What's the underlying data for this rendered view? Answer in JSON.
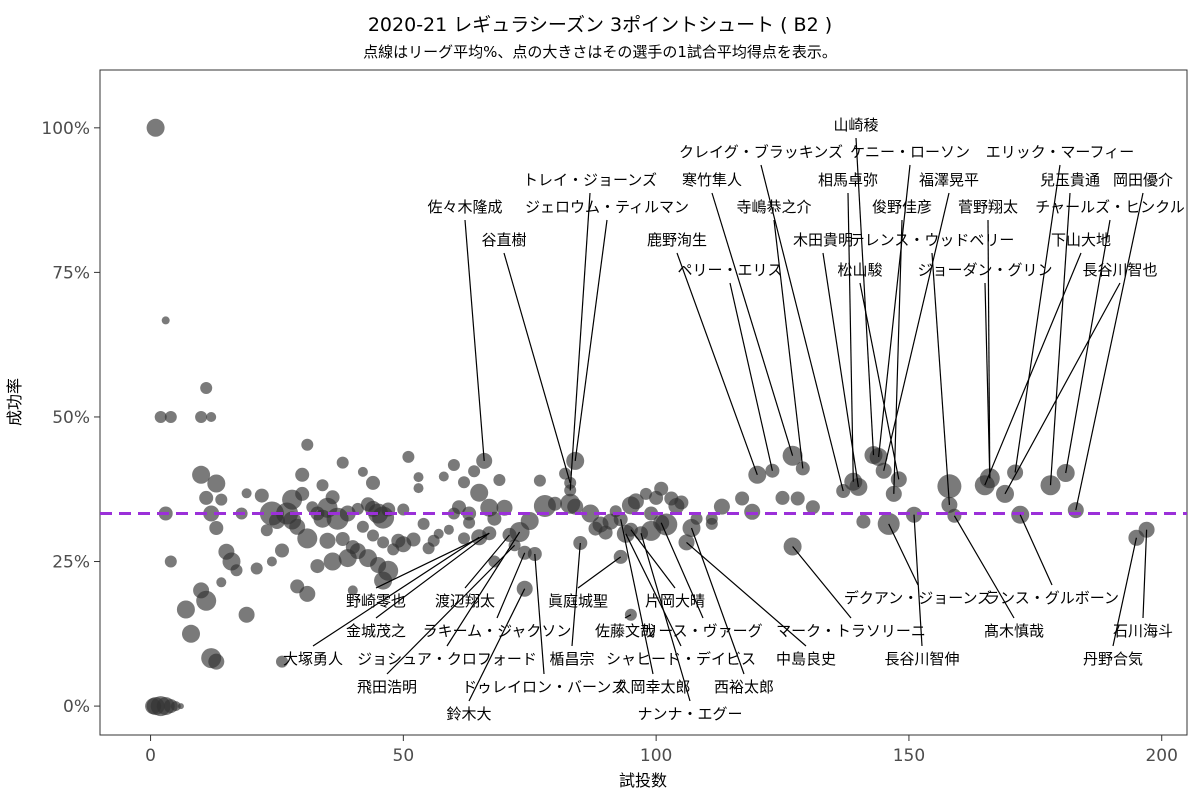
{
  "chart_data": {
    "type": "scatter",
    "title": "2020-21 レギュラシーズン 3ポイントシュート ( B2 )",
    "subtitle": "点線はリーグ平均%、点の大きさはその選手の1試合平均得点を表示。",
    "xlabel": "試投数",
    "ylabel": "成功率",
    "xlim": [
      -10,
      205
    ],
    "ylim": [
      -0.05,
      1.1
    ],
    "x_ticks": [
      0,
      50,
      100,
      150,
      200
    ],
    "x_tick_labels": [
      "0",
      "50",
      "100",
      "150",
      "200"
    ],
    "y_ticks": [
      0,
      0.25,
      0.5,
      0.75,
      1.0
    ],
    "y_tick_labels": [
      "0%",
      "25%",
      "50%",
      "75%",
      "100%"
    ],
    "average_line": 0.333,
    "average_line_color": "#9b30d9",
    "point_color": "#333333",
    "points": [
      {
        "x": 1,
        "y": 1.0,
        "s": 9
      },
      {
        "x": 3,
        "y": 0.667,
        "s": 4
      },
      {
        "x": 2,
        "y": 0.5,
        "s": 6
      },
      {
        "x": 4,
        "y": 0.5,
        "s": 6
      },
      {
        "x": 3,
        "y": 0.333,
        "s": 7
      },
      {
        "x": 4,
        "y": 0.25,
        "s": 6
      },
      {
        "x": 7,
        "y": 0.167,
        "s": 9
      },
      {
        "x": 6,
        "y": 0.0,
        "s": 3
      },
      {
        "x": 1,
        "y": 0.0,
        "s": 9
      },
      {
        "x": 2,
        "y": 0.0,
        "s": 10
      },
      {
        "x": 3,
        "y": 0.0,
        "s": 9
      },
      {
        "x": 4,
        "y": 0.0,
        "s": 7
      },
      {
        "x": 5,
        "y": 0.0,
        "s": 5
      },
      {
        "x": 0.5,
        "y": 0.0,
        "s": 8
      },
      {
        "x": 10,
        "y": 0.5,
        "s": 6
      },
      {
        "x": 12,
        "y": 0.5,
        "s": 5
      },
      {
        "x": 11,
        "y": 0.55,
        "s": 6
      },
      {
        "x": 10,
        "y": 0.4,
        "s": 9
      },
      {
        "x": 11,
        "y": 0.36,
        "s": 7
      },
      {
        "x": 13,
        "y": 0.385,
        "s": 9
      },
      {
        "x": 12,
        "y": 0.333,
        "s": 8
      },
      {
        "x": 13,
        "y": 0.308,
        "s": 7
      },
      {
        "x": 14,
        "y": 0.357,
        "s": 6
      },
      {
        "x": 15,
        "y": 0.267,
        "s": 8
      },
      {
        "x": 16,
        "y": 0.25,
        "s": 9
      },
      {
        "x": 17,
        "y": 0.235,
        "s": 6
      },
      {
        "x": 14,
        "y": 0.214,
        "s": 5
      },
      {
        "x": 10,
        "y": 0.2,
        "s": 8
      },
      {
        "x": 11,
        "y": 0.182,
        "s": 10
      },
      {
        "x": 8,
        "y": 0.125,
        "s": 9
      },
      {
        "x": 12,
        "y": 0.083,
        "s": 10
      },
      {
        "x": 13,
        "y": 0.077,
        "s": 8
      },
      {
        "x": 19,
        "y": 0.368,
        "s": 5
      },
      {
        "x": 18,
        "y": 0.333,
        "s": 6
      },
      {
        "x": 19,
        "y": 0.158,
        "s": 8
      },
      {
        "x": 21,
        "y": 0.238,
        "s": 6
      },
      {
        "x": 22,
        "y": 0.364,
        "s": 7
      },
      {
        "x": 23,
        "y": 0.304,
        "s": 6
      },
      {
        "x": 24,
        "y": 0.333,
        "s": 12
      },
      {
        "x": 24,
        "y": 0.25,
        "s": 5
      },
      {
        "x": 25,
        "y": 0.32,
        "s": 8
      },
      {
        "x": 26,
        "y": 0.269,
        "s": 7
      },
      {
        "x": 26,
        "y": 0.077,
        "s": 6
      },
      {
        "x": 27,
        "y": 0.333,
        "s": 11
      },
      {
        "x": 28,
        "y": 0.357,
        "s": 10
      },
      {
        "x": 28,
        "y": 0.321,
        "s": 9
      },
      {
        "x": 29,
        "y": 0.31,
        "s": 8
      },
      {
        "x": 29,
        "y": 0.207,
        "s": 7
      },
      {
        "x": 30,
        "y": 0.4,
        "s": 7
      },
      {
        "x": 30,
        "y": 0.367,
        "s": 7
      },
      {
        "x": 31,
        "y": 0.29,
        "s": 10
      },
      {
        "x": 31,
        "y": 0.194,
        "s": 8
      },
      {
        "x": 31,
        "y": 0.452,
        "s": 6
      },
      {
        "x": 32,
        "y": 0.344,
        "s": 6
      },
      {
        "x": 33,
        "y": 0.333,
        "s": 7
      },
      {
        "x": 33,
        "y": 0.242,
        "s": 7
      },
      {
        "x": 34,
        "y": 0.324,
        "s": 9
      },
      {
        "x": 34,
        "y": 0.382,
        "s": 6
      },
      {
        "x": 35,
        "y": 0.343,
        "s": 10
      },
      {
        "x": 35,
        "y": 0.286,
        "s": 8
      },
      {
        "x": 36,
        "y": 0.361,
        "s": 7
      },
      {
        "x": 36,
        "y": 0.25,
        "s": 9
      },
      {
        "x": 37,
        "y": 0.324,
        "s": 11
      },
      {
        "x": 38,
        "y": 0.421,
        "s": 6
      },
      {
        "x": 38,
        "y": 0.289,
        "s": 7
      },
      {
        "x": 39,
        "y": 0.333,
        "s": 8
      },
      {
        "x": 39,
        "y": 0.256,
        "s": 9
      },
      {
        "x": 40,
        "y": 0.2,
        "s": 5
      },
      {
        "x": 40,
        "y": 0.275,
        "s": 7
      },
      {
        "x": 41,
        "y": 0.341,
        "s": 6
      },
      {
        "x": 41,
        "y": 0.268,
        "s": 8
      },
      {
        "x": 42,
        "y": 0.405,
        "s": 5
      },
      {
        "x": 42,
        "y": 0.31,
        "s": 6
      },
      {
        "x": 43,
        "y": 0.349,
        "s": 7
      },
      {
        "x": 43,
        "y": 0.256,
        "s": 9
      },
      {
        "x": 44,
        "y": 0.341,
        "s": 8
      },
      {
        "x": 44,
        "y": 0.295,
        "s": 6
      },
      {
        "x": 44,
        "y": 0.386,
        "s": 7
      },
      {
        "x": 45,
        "y": 0.333,
        "s": 10
      },
      {
        "x": 45,
        "y": 0.244,
        "s": 8
      },
      {
        "x": 46,
        "y": 0.326,
        "s": 11
      },
      {
        "x": 46,
        "y": 0.283,
        "s": 6
      },
      {
        "x": 46,
        "y": 0.217,
        "s": 9
      },
      {
        "x": 47,
        "y": 0.34,
        "s": 7
      },
      {
        "x": 47,
        "y": 0.234,
        "s": 10
      },
      {
        "x": 48,
        "y": 0.271,
        "s": 6
      },
      {
        "x": 49,
        "y": 0.286,
        "s": 7
      },
      {
        "x": 50,
        "y": 0.34,
        "s": 6
      },
      {
        "x": 50,
        "y": 0.28,
        "s": 8
      },
      {
        "x": 51,
        "y": 0.431,
        "s": 6
      },
      {
        "x": 52,
        "y": 0.288,
        "s": 7
      },
      {
        "x": 53,
        "y": 0.377,
        "s": 5
      },
      {
        "x": 53,
        "y": 0.396,
        "s": 5
      },
      {
        "x": 54,
        "y": 0.315,
        "s": 6
      },
      {
        "x": 55,
        "y": 0.273,
        "s": 6
      },
      {
        "x": 56,
        "y": 0.286,
        "s": 6
      },
      {
        "x": 57,
        "y": 0.298,
        "s": 5
      },
      {
        "x": 58,
        "y": 0.397,
        "s": 5
      },
      {
        "x": 59,
        "y": 0.305,
        "s": 5
      },
      {
        "x": 60,
        "y": 0.333,
        "s": 6
      },
      {
        "x": 60,
        "y": 0.417,
        "s": 6
      },
      {
        "x": 61,
        "y": 0.344,
        "s": 7
      },
      {
        "x": 62,
        "y": 0.29,
        "s": 6
      },
      {
        "x": 62,
        "y": 0.387,
        "s": 6
      },
      {
        "x": 63,
        "y": 0.317,
        "s": 6
      },
      {
        "x": 63,
        "y": 0.333,
        "s": 7
      },
      {
        "x": 64,
        "y": 0.406,
        "s": 6
      },
      {
        "x": 65,
        "y": 0.369,
        "s": 9
      },
      {
        "x": 65,
        "y": 0.292,
        "s": 8
      },
      {
        "x": 66,
        "y": 0.424,
        "s": 8
      },
      {
        "x": 67,
        "y": 0.299,
        "s": 7
      },
      {
        "x": 67,
        "y": 0.343,
        "s": 9
      },
      {
        "x": 68,
        "y": 0.324,
        "s": 7
      },
      {
        "x": 68,
        "y": 0.25,
        "s": 6
      },
      {
        "x": 69,
        "y": 0.391,
        "s": 6
      },
      {
        "x": 70,
        "y": 0.343,
        "s": 8
      },
      {
        "x": 71,
        "y": 0.296,
        "s": 7
      },
      {
        "x": 72,
        "y": 0.278,
        "s": 6
      },
      {
        "x": 73,
        "y": 0.301,
        "s": 10
      },
      {
        "x": 74,
        "y": 0.203,
        "s": 8
      },
      {
        "x": 74,
        "y": 0.265,
        "s": 7
      },
      {
        "x": 75,
        "y": 0.32,
        "s": 9
      },
      {
        "x": 76,
        "y": 0.263,
        "s": 7
      },
      {
        "x": 77,
        "y": 0.39,
        "s": 6
      },
      {
        "x": 78,
        "y": 0.346,
        "s": 11
      },
      {
        "x": 80,
        "y": 0.35,
        "s": 7
      },
      {
        "x": 82,
        "y": 0.402,
        "s": 6
      },
      {
        "x": 83,
        "y": 0.386,
        "s": 6
      },
      {
        "x": 83,
        "y": 0.35,
        "s": 10
      },
      {
        "x": 83,
        "y": 0.373,
        "s": 6
      },
      {
        "x": 84,
        "y": 0.345,
        "s": 8
      },
      {
        "x": 84,
        "y": 0.424,
        "s": 9
      },
      {
        "x": 85,
        "y": 0.282,
        "s": 7
      },
      {
        "x": 87,
        "y": 0.333,
        "s": 9
      },
      {
        "x": 88,
        "y": 0.307,
        "s": 7
      },
      {
        "x": 89,
        "y": 0.314,
        "s": 8
      },
      {
        "x": 90,
        "y": 0.3,
        "s": 7
      },
      {
        "x": 91,
        "y": 0.319,
        "s": 8
      },
      {
        "x": 92,
        "y": 0.337,
        "s": 6
      },
      {
        "x": 93,
        "y": 0.323,
        "s": 7
      },
      {
        "x": 93,
        "y": 0.258,
        "s": 7
      },
      {
        "x": 94,
        "y": 0.298,
        "s": 9
      },
      {
        "x": 95,
        "y": 0.158,
        "s": 6
      },
      {
        "x": 95,
        "y": 0.305,
        "s": 7
      },
      {
        "x": 95,
        "y": 0.347,
        "s": 9
      },
      {
        "x": 96,
        "y": 0.354,
        "s": 8
      },
      {
        "x": 97,
        "y": 0.299,
        "s": 7
      },
      {
        "x": 98,
        "y": 0.367,
        "s": 6
      },
      {
        "x": 99,
        "y": 0.303,
        "s": 10
      },
      {
        "x": 99,
        "y": 0.333,
        "s": 7
      },
      {
        "x": 100,
        "y": 0.36,
        "s": 7
      },
      {
        "x": 101,
        "y": 0.376,
        "s": 7
      },
      {
        "x": 101,
        "y": 0.317,
        "s": 8
      },
      {
        "x": 102,
        "y": 0.314,
        "s": 11
      },
      {
        "x": 103,
        "y": 0.359,
        "s": 7
      },
      {
        "x": 104,
        "y": 0.346,
        "s": 8
      },
      {
        "x": 105,
        "y": 0.352,
        "s": 7
      },
      {
        "x": 106,
        "y": 0.283,
        "s": 8
      },
      {
        "x": 107,
        "y": 0.308,
        "s": 9
      },
      {
        "x": 108,
        "y": 0.324,
        "s": 6
      },
      {
        "x": 111,
        "y": 0.315,
        "s": 6
      },
      {
        "x": 111,
        "y": 0.324,
        "s": 6
      },
      {
        "x": 113,
        "y": 0.345,
        "s": 8
      },
      {
        "x": 117,
        "y": 0.359,
        "s": 7
      },
      {
        "x": 119,
        "y": 0.336,
        "s": 8
      },
      {
        "x": 120,
        "y": 0.4,
        "s": 9
      },
      {
        "x": 123,
        "y": 0.407,
        "s": 7
      },
      {
        "x": 125,
        "y": 0.36,
        "s": 7
      },
      {
        "x": 127,
        "y": 0.276,
        "s": 9
      },
      {
        "x": 127,
        "y": 0.433,
        "s": 10
      },
      {
        "x": 128,
        "y": 0.359,
        "s": 7
      },
      {
        "x": 129,
        "y": 0.411,
        "s": 7
      },
      {
        "x": 131,
        "y": 0.344,
        "s": 7
      },
      {
        "x": 137,
        "y": 0.372,
        "s": 7
      },
      {
        "x": 139,
        "y": 0.388,
        "s": 9
      },
      {
        "x": 140,
        "y": 0.379,
        "s": 9
      },
      {
        "x": 141,
        "y": 0.319,
        "s": 7
      },
      {
        "x": 143,
        "y": 0.434,
        "s": 9
      },
      {
        "x": 144,
        "y": 0.431,
        "s": 9
      },
      {
        "x": 145,
        "y": 0.407,
        "s": 8
      },
      {
        "x": 146,
        "y": 0.315,
        "s": 11
      },
      {
        "x": 147,
        "y": 0.367,
        "s": 8
      },
      {
        "x": 148,
        "y": 0.392,
        "s": 8
      },
      {
        "x": 151,
        "y": 0.331,
        "s": 8
      },
      {
        "x": 158,
        "y": 0.38,
        "s": 12
      },
      {
        "x": 158,
        "y": 0.348,
        "s": 8
      },
      {
        "x": 159,
        "y": 0.329,
        "s": 7
      },
      {
        "x": 165,
        "y": 0.382,
        "s": 10
      },
      {
        "x": 166,
        "y": 0.394,
        "s": 10
      },
      {
        "x": 169,
        "y": 0.367,
        "s": 9
      },
      {
        "x": 171,
        "y": 0.404,
        "s": 8
      },
      {
        "x": 172,
        "y": 0.331,
        "s": 9
      },
      {
        "x": 178,
        "y": 0.382,
        "s": 10
      },
      {
        "x": 181,
        "y": 0.403,
        "s": 9
      },
      {
        "x": 183,
        "y": 0.339,
        "s": 8
      },
      {
        "x": 195,
        "y": 0.291,
        "s": 8
      },
      {
        "x": 197,
        "y": 0.305,
        "s": 8
      }
    ],
    "annotations": [
      {
        "label": "山崎稜",
        "x": 143,
        "y": 0.434
      },
      {
        "label": "クレイグ・ブラッキンズ",
        "x": 137,
        "y": 0.372
      },
      {
        "label": "ケニー・ローソン",
        "x": 144,
        "y": 0.431
      },
      {
        "label": "エリック・マーフィー",
        "x": 171,
        "y": 0.404
      },
      {
        "label": "トレイ・ジョーンズ",
        "x": 83,
        "y": 0.373
      },
      {
        "label": "寒竹隼人",
        "x": 127,
        "y": 0.433
      },
      {
        "label": "相馬卓弥",
        "x": 139,
        "y": 0.388
      },
      {
        "label": "福澤晃平",
        "x": 145,
        "y": 0.407
      },
      {
        "label": "兒玉貴通",
        "x": 178,
        "y": 0.382
      },
      {
        "label": "岡田優介",
        "x": 183,
        "y": 0.339
      },
      {
        "label": "佐々木隆成",
        "x": 66,
        "y": 0.424
      },
      {
        "label": "ジェロウム・ティルマン",
        "x": 84,
        "y": 0.424
      },
      {
        "label": "寺嶋恭之介",
        "x": 129,
        "y": 0.411
      },
      {
        "label": "俊野佳彦",
        "x": 147,
        "y": 0.367
      },
      {
        "label": "菅野翔太",
        "x": 166,
        "y": 0.394
      },
      {
        "label": "チャールズ・ヒンクル",
        "x": 181,
        "y": 0.403
      },
      {
        "label": "谷直樹",
        "x": 83,
        "y": 0.386
      },
      {
        "label": "鹿野洵生",
        "x": 120,
        "y": 0.4
      },
      {
        "label": "木田貴明",
        "x": 140,
        "y": 0.379
      },
      {
        "label": "テレンス・ウッドベリー",
        "x": 158,
        "y": 0.348
      },
      {
        "label": "下山大地",
        "x": 165,
        "y": 0.382
      },
      {
        "label": "ペリー・エリス",
        "x": 123,
        "y": 0.407
      },
      {
        "label": "松山駿",
        "x": 148,
        "y": 0.392
      },
      {
        "label": "ジョーダン・グリン",
        "x": 166,
        "y": 0.394
      },
      {
        "label": "長谷川智也",
        "x": 169,
        "y": 0.367
      },
      {
        "label": "デクアン・ジョーンズ",
        "x": 146,
        "y": 0.315
      },
      {
        "label": "ランス・グルボーン",
        "x": 172,
        "y": 0.331
      },
      {
        "label": "野崎零也",
        "x": 67,
        "y": 0.299
      },
      {
        "label": "渡辺翔太",
        "x": 71,
        "y": 0.296
      },
      {
        "label": "眞庭城聖",
        "x": 93,
        "y": 0.258
      },
      {
        "label": "片岡大晴",
        "x": 95,
        "y": 0.305
      },
      {
        "label": "金城茂之",
        "x": 67,
        "y": 0.299
      },
      {
        "label": "ラキーム・ジャクソン",
        "x": 74,
        "y": 0.265
      },
      {
        "label": "佐藤文哉",
        "x": 95,
        "y": 0.158
      },
      {
        "label": "リース・ヴァーグ",
        "x": 101,
        "y": 0.317
      },
      {
        "label": "マーク・トラソリーニ",
        "x": 127,
        "y": 0.276
      },
      {
        "label": "髙木慎哉",
        "x": 159,
        "y": 0.329
      },
      {
        "label": "石川海斗",
        "x": 197,
        "y": 0.305
      },
      {
        "label": "大塚勇人",
        "x": 65,
        "y": 0.292
      },
      {
        "label": "ジョシュア・クロフォード",
        "x": 73,
        "y": 0.301
      },
      {
        "label": "楯昌宗",
        "x": 85,
        "y": 0.282
      },
      {
        "label": "シャヒード・デイビス",
        "x": 94,
        "y": 0.298
      },
      {
        "label": "中島良史",
        "x": 106,
        "y": 0.283
      },
      {
        "label": "長谷川智伸",
        "x": 151,
        "y": 0.331
      },
      {
        "label": "丹野合気",
        "x": 195,
        "y": 0.291
      },
      {
        "label": "飛田浩明",
        "x": 72,
        "y": 0.278
      },
      {
        "label": "ドゥレイロン・バーンズ",
        "x": 76,
        "y": 0.263
      },
      {
        "label": "久岡幸太郎",
        "x": 93,
        "y": 0.323
      },
      {
        "label": "西裕太郎",
        "x": 107,
        "y": 0.308
      },
      {
        "label": "鈴木大",
        "x": 74,
        "y": 0.203
      },
      {
        "label": "ナンナ・エグー",
        "x": 97,
        "y": 0.299
      }
    ]
  }
}
